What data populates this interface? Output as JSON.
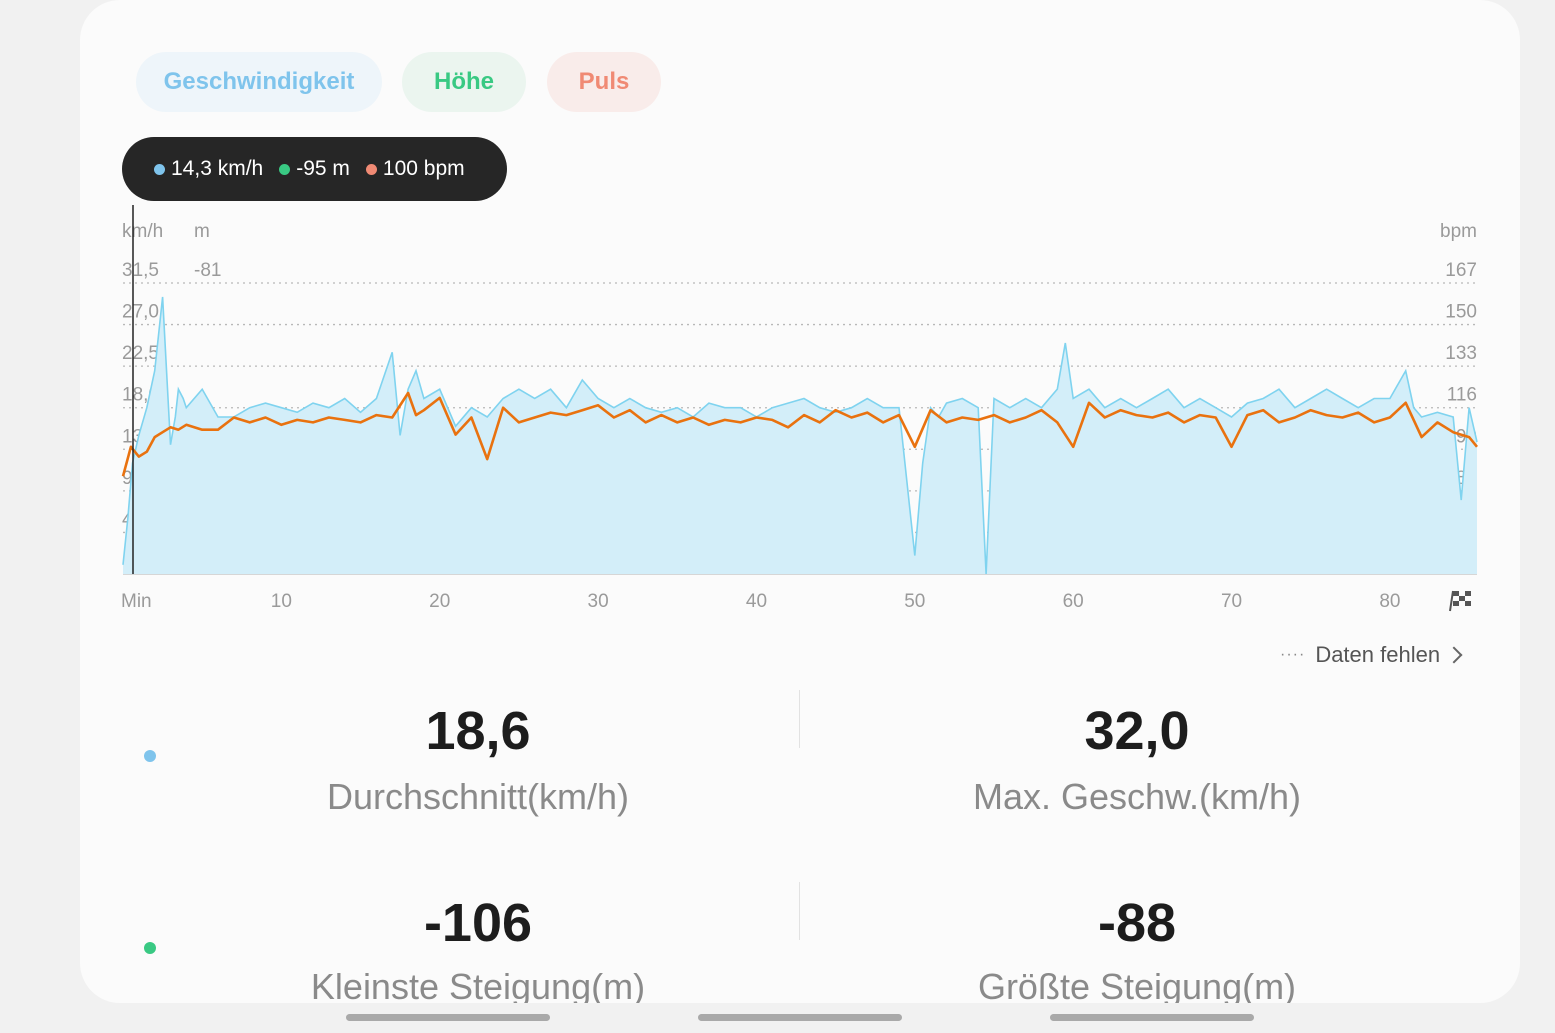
{
  "tabs": [
    {
      "label": "Geschwindigkeit",
      "color": "#7fc4ec"
    },
    {
      "label": "Höhe",
      "color": "#39c983"
    },
    {
      "label": "Puls",
      "color": "#f08a74"
    }
  ],
  "tooltip": {
    "speed": "14,3 km/h",
    "height": "-95 m",
    "pulse": "100 bpm",
    "speed_color": "#7fc4ec",
    "height_color": "#39c983",
    "pulse_color": "#f08a74"
  },
  "chart_data": {
    "type": "area",
    "left_unit_speed": "km/h",
    "left_unit_height": "m",
    "right_unit": "bpm",
    "speed_ticks": [
      "31,5",
      "27,0",
      "22,5",
      "18,0",
      "13,5",
      "9,0",
      "4,5"
    ],
    "height_ticks": [
      "-81"
    ],
    "bpm_ticks": [
      "167",
      "150",
      "133",
      "116",
      "99",
      "82",
      "65"
    ],
    "x_ticks": [
      "Min",
      "10",
      "20",
      "30",
      "40",
      "50",
      "60",
      "70",
      "80"
    ],
    "xlim": [
      0,
      85.5
    ],
    "speed_ylim": [
      0,
      31.5
    ],
    "bpm_ylim": [
      48,
      167
    ],
    "grid": true,
    "series": [
      {
        "name": "Geschwindigkeit",
        "color": "#7fd3ef",
        "x": [
          0,
          0.3,
          0.6,
          1,
          1.5,
          2,
          2.5,
          3,
          3.3,
          3.5,
          3.8,
          4,
          5,
          6,
          7,
          8,
          9,
          10,
          11,
          12,
          13,
          14,
          15,
          16,
          17,
          17.5,
          18,
          18.5,
          19,
          20,
          21,
          22,
          23,
          24,
          25,
          26,
          27,
          28,
          29,
          30,
          31,
          32,
          33,
          34,
          35,
          36,
          37,
          38,
          39,
          40,
          41,
          42,
          43,
          44,
          45,
          46,
          47,
          48,
          49,
          50,
          50.5,
          51,
          51.5,
          52,
          53,
          54,
          54.5,
          55,
          56,
          57,
          58,
          59,
          59.5,
          60,
          61,
          62,
          63,
          64,
          65,
          66,
          67,
          68,
          69,
          70,
          71,
          72,
          73,
          74,
          75,
          76,
          77,
          78,
          79,
          80,
          81,
          81.5,
          82,
          83,
          84,
          84.5,
          85,
          85.5
        ],
        "values": [
          1,
          6,
          12,
          15,
          18,
          22,
          30,
          14,
          17,
          20,
          19,
          18,
          20,
          17,
          17,
          18,
          18.5,
          18,
          17.5,
          18.5,
          18,
          19,
          17.5,
          19,
          24,
          15,
          20,
          22,
          19,
          20,
          16,
          18,
          17,
          19,
          20,
          19,
          20,
          18,
          21,
          19,
          18,
          19,
          18,
          17.5,
          18,
          17,
          18.5,
          18,
          18,
          17,
          18,
          18.5,
          19,
          18,
          17.5,
          18,
          19,
          18,
          18,
          2,
          12,
          18,
          17,
          18.5,
          19,
          18,
          0,
          19,
          18,
          19,
          18,
          20,
          25,
          19,
          20,
          18,
          19,
          18,
          19,
          20,
          18,
          19,
          18,
          17,
          18.5,
          19,
          20,
          18,
          19,
          20,
          19,
          18,
          19,
          19,
          22,
          18,
          17,
          17.5,
          17,
          8,
          18,
          14.3
        ]
      },
      {
        "name": "Puls",
        "color": "#e9720f",
        "x": [
          0,
          0.5,
          1,
          1.5,
          2,
          2.5,
          3,
          3.5,
          4,
          5,
          6,
          7,
          8,
          9,
          10,
          11,
          12,
          13,
          14,
          15,
          16,
          17,
          18,
          18.5,
          19,
          20,
          21,
          22,
          23,
          24,
          25,
          26,
          27,
          28,
          29,
          30,
          31,
          32,
          33,
          34,
          35,
          36,
          37,
          38,
          39,
          40,
          41,
          42,
          43,
          44,
          45,
          46,
          47,
          48,
          49,
          50,
          51,
          52,
          53,
          54,
          55,
          56,
          57,
          58,
          59,
          60,
          61,
          62,
          63,
          64,
          65,
          66,
          67,
          68,
          69,
          70,
          71,
          72,
          73,
          74,
          75,
          76,
          77,
          78,
          79,
          80,
          81,
          82,
          83,
          84,
          85,
          85.5
        ],
        "values": [
          88,
          100,
          96,
          98,
          104,
          106,
          108,
          107,
          109,
          107,
          107,
          112,
          110,
          112,
          109,
          111,
          110,
          112,
          111,
          110,
          113,
          112,
          122,
          113,
          115,
          120,
          105,
          112,
          95,
          116,
          110,
          112,
          114,
          113,
          115,
          117,
          112,
          115,
          110,
          113,
          110,
          112,
          109,
          111,
          110,
          112,
          111,
          108,
          113,
          110,
          115,
          112,
          114,
          110,
          113,
          100,
          115,
          110,
          112,
          111,
          113,
          110,
          112,
          115,
          110,
          100,
          118,
          112,
          115,
          113,
          112,
          114,
          110,
          113,
          112,
          100,
          113,
          115,
          110,
          112,
          115,
          113,
          112,
          114,
          110,
          112,
          118,
          104,
          110,
          106,
          104,
          100
        ]
      }
    ]
  },
  "missing_link": {
    "label": "Daten fehlen",
    "dots": "····"
  },
  "stats": [
    {
      "value": "18,6",
      "label": "Durchschnitt(km/h)",
      "color": "#7fc4ec"
    },
    {
      "value": "32,0",
      "label": "Max. Geschw.(km/h)"
    },
    {
      "value": "-106",
      "label": "Kleinste Steigung(m)",
      "color": "#39c983"
    },
    {
      "value": "-88",
      "label": "Größte Steigung(m)"
    }
  ]
}
